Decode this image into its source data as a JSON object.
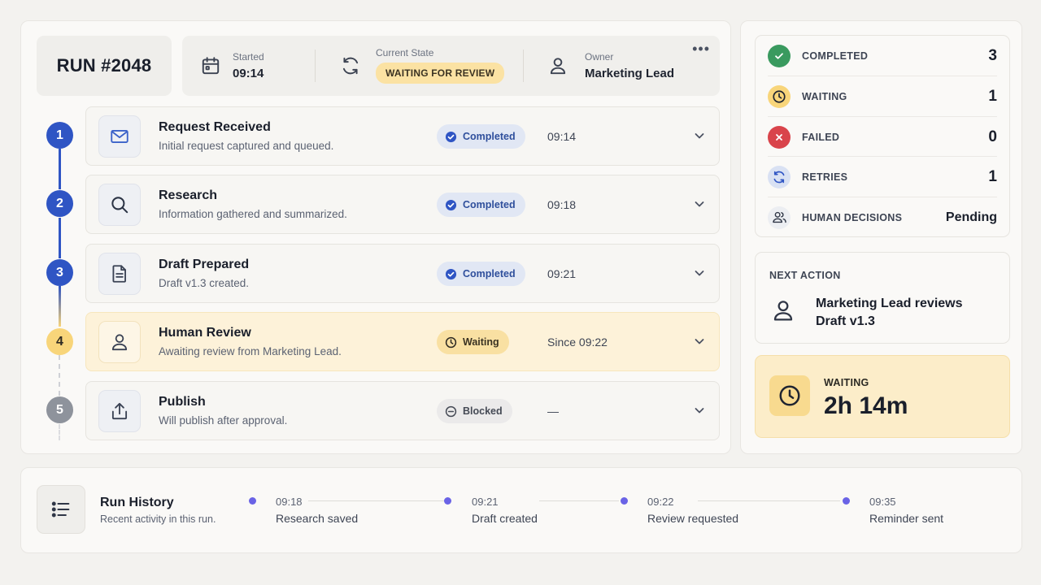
{
  "header": {
    "run_label": "RUN #2048",
    "started": {
      "label": "Started",
      "value": "09:14"
    },
    "current_state": {
      "label": "Current State",
      "value": "WAITING FOR REVIEW"
    },
    "owner": {
      "label": "Owner",
      "value": "Marketing Lead"
    },
    "more_icon": "more-horizontal-icon"
  },
  "steps": [
    {
      "number": "1",
      "title": "Request Received",
      "description": "Initial request captured and queued.",
      "status": "Completed",
      "time": "09:14",
      "icon": "mail-icon"
    },
    {
      "number": "2",
      "title": "Research",
      "description": "Information gathered and summarized.",
      "status": "Completed",
      "time": "09:18",
      "icon": "search-icon"
    },
    {
      "number": "3",
      "title": "Draft Prepared",
      "description": "Draft v1.3 created.",
      "status": "Completed",
      "time": "09:21",
      "icon": "document-icon"
    },
    {
      "number": "4",
      "title": "Human Review",
      "description": "Awaiting review from Marketing Lead.",
      "status": "Waiting",
      "time": "Since 09:22",
      "icon": "user-icon"
    },
    {
      "number": "5",
      "title": "Publish",
      "description": "Will publish after approval.",
      "status": "Blocked",
      "time": "—",
      "icon": "upload-icon"
    }
  ],
  "stats": [
    {
      "label": "COMPLETED",
      "value": "3",
      "icon": "check-circle-icon"
    },
    {
      "label": "WAITING",
      "value": "1",
      "icon": "clock-icon"
    },
    {
      "label": "FAILED",
      "value": "0",
      "icon": "x-circle-icon"
    },
    {
      "label": "RETRIES",
      "value": "1",
      "icon": "refresh-icon"
    },
    {
      "label": "HUMAN DECISIONS",
      "value": "Pending",
      "icon": "users-icon"
    }
  ],
  "next_action": {
    "label": "NEXT ACTION",
    "text": "Marketing Lead reviews Draft v1.3"
  },
  "waiting": {
    "label": "WAITING",
    "value": "2h 14m"
  },
  "history": {
    "title": "Run History",
    "subtitle": "Recent activity in this run.",
    "events": [
      {
        "time": "09:18",
        "event": "Research saved"
      },
      {
        "time": "09:21",
        "event": "Draft created"
      },
      {
        "time": "09:22",
        "event": "Review requested"
      },
      {
        "time": "09:35",
        "event": "Reminder sent"
      }
    ]
  },
  "colors": {
    "primary_blue": "#2f55c4",
    "waiting_yellow": "#f8d57a",
    "blocked_gray": "#8e939c",
    "failed_red": "#d9444b",
    "completed_green": "#3a9a5f",
    "timeline_purple": "#6a63e6"
  }
}
